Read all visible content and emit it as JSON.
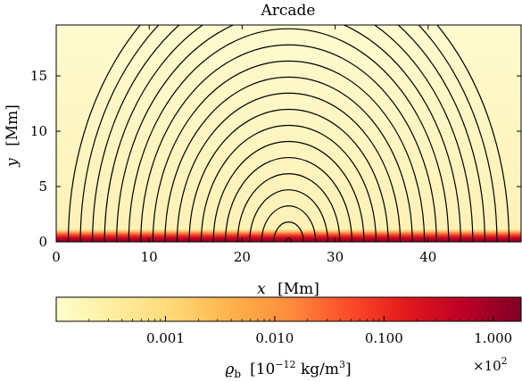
{
  "chart_data": [
    {
      "type": "heatmap",
      "title": "Arcade",
      "xlabel": "x [Mm]",
      "xlabel_var": "x",
      "xlabel_unit": "[Mm]",
      "ylabel": "y [Mm]",
      "ylabel_var": "y",
      "ylabel_unit": "[Mm]",
      "xlim": [
        0,
        50
      ],
      "ylim": [
        0,
        19.6
      ],
      "xticks": [
        0,
        10,
        20,
        30,
        40
      ],
      "yticks": [
        0,
        5,
        10,
        15
      ],
      "field_lines": {
        "center_x": 25,
        "footpoints_x": [
          1.3,
          2.6,
          3.9,
          5.2,
          6.5,
          7.8,
          9.1,
          10.4,
          11.7,
          13.0,
          14.3,
          15.6,
          16.9,
          18.2,
          19.5,
          20.8,
          22.1,
          23.4,
          24.7
        ],
        "color": "#000000"
      },
      "density_profile": {
        "description_free": true,
        "dense_layer_top_y": 1.2,
        "colors": [
          "#fffecc",
          "#fed976",
          "#fd8d3c",
          "#e31a1c",
          "#7a0026"
        ]
      }
    },
    {
      "type": "colorbar",
      "scale": "log",
      "range": [
        0.0001,
        1.8
      ],
      "ticks": [
        0.001,
        0.01,
        0.1,
        1.0
      ],
      "tick_labels": [
        "0.001",
        "0.010",
        "0.100",
        "1.000"
      ],
      "multiplier": "×10",
      "multiplier_exp": "2",
      "label_var": "ϱ",
      "label_sub": "b",
      "label_units": "[10",
      "label_units_exp": "−12",
      "label_units_rest": " kg/m",
      "label_units_exp2": "3",
      "label_close": "]",
      "colors": [
        "#fffecc",
        "#ffeda0",
        "#fed976",
        "#feb24c",
        "#fd8d3c",
        "#fc4e2a",
        "#e31a1c",
        "#bd0026",
        "#800026"
      ]
    }
  ]
}
